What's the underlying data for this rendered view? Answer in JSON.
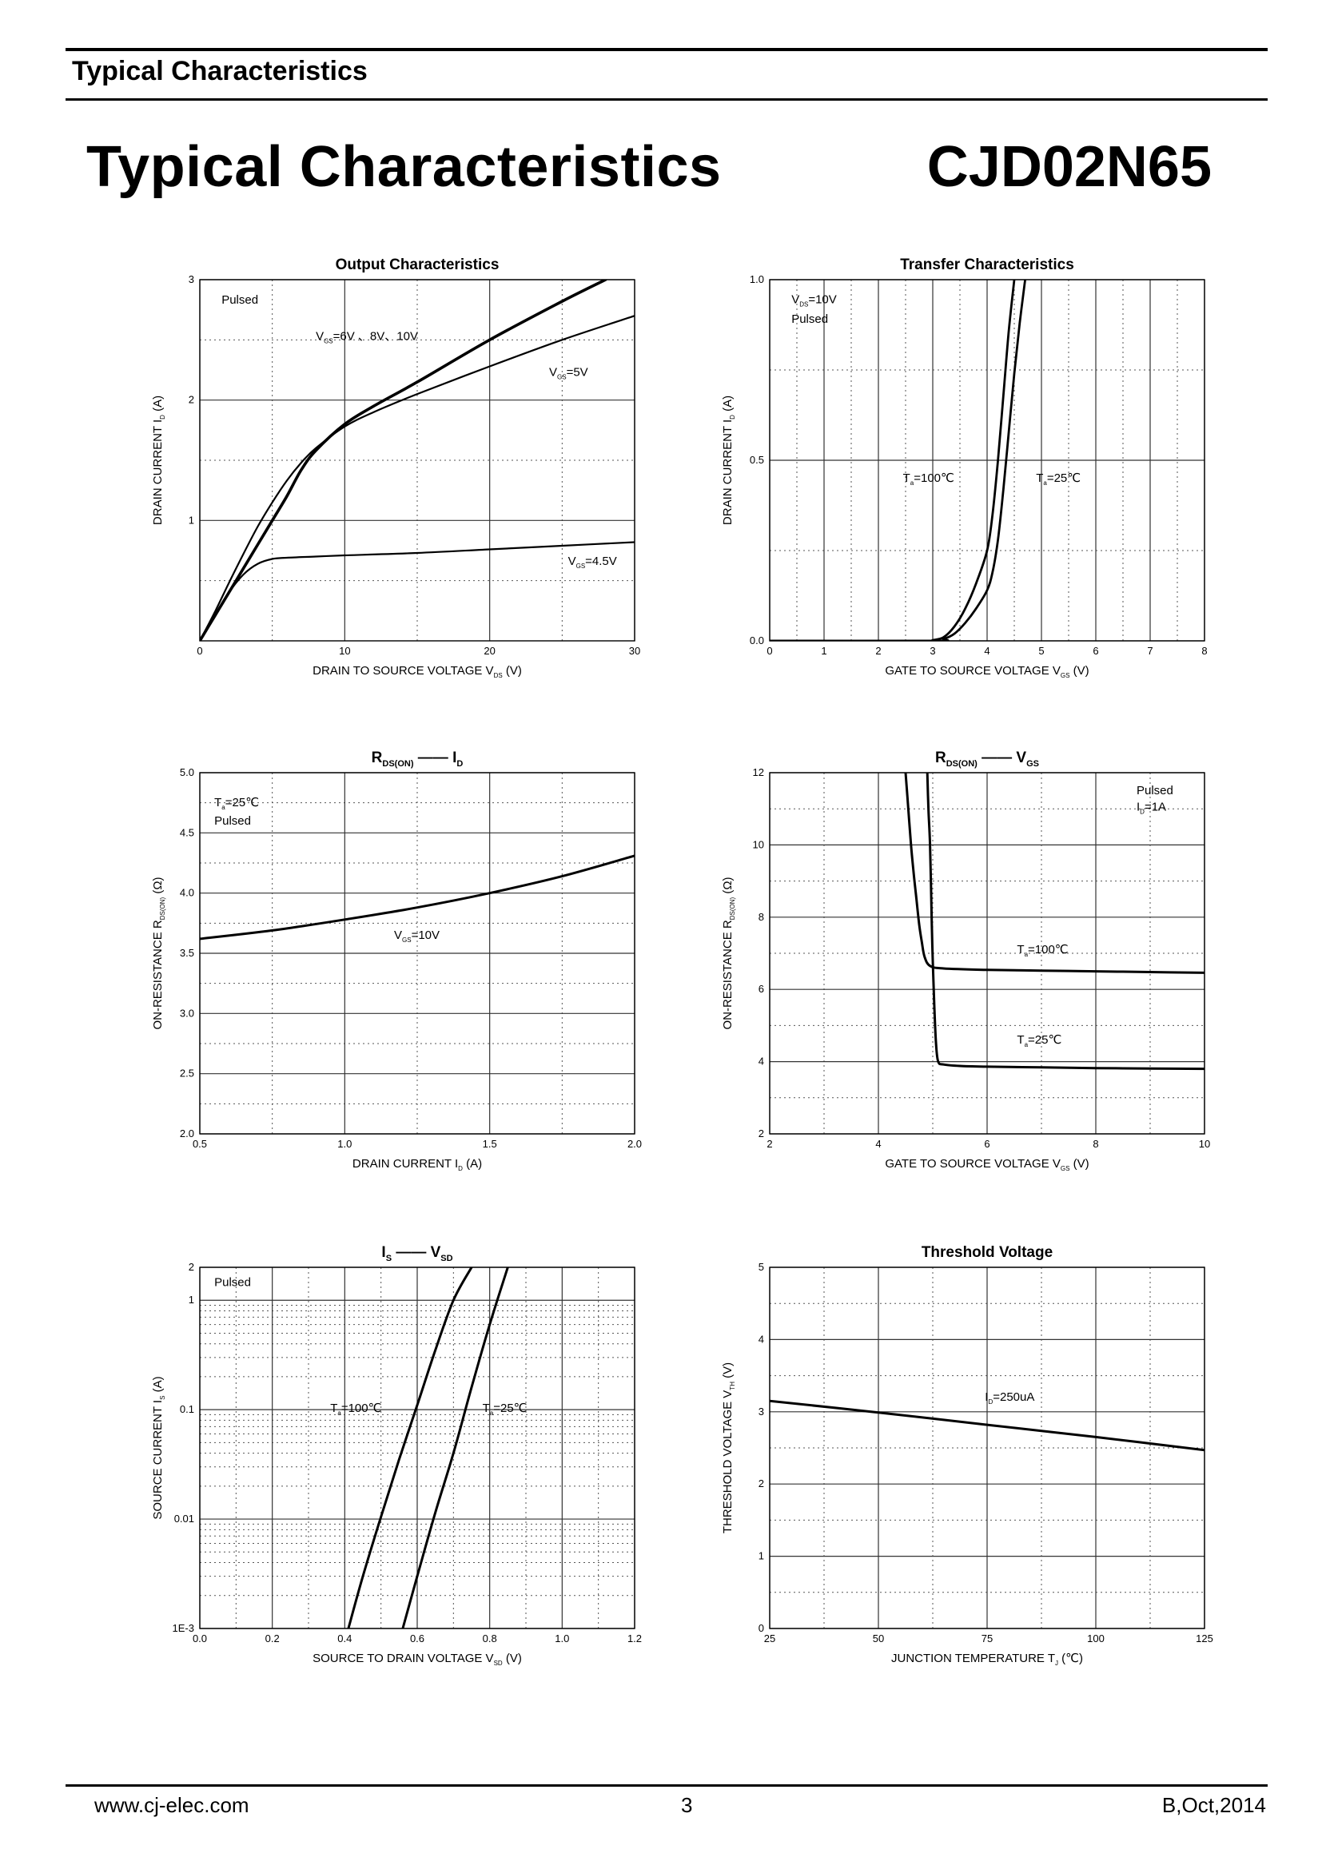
{
  "header": {
    "label": "Typical Characteristics"
  },
  "document": {
    "title": "Typical Characteristics",
    "part_number": "CJD02N65"
  },
  "footer": {
    "url": "www.cj-elec.com",
    "page": "3",
    "revision": "B,Oct,2014"
  },
  "chart_data": [
    {
      "id": "output",
      "type": "line",
      "title": {
        "main": "Output Characteristics"
      },
      "xlabel": {
        "text": "DRAIN TO SOURCE VOLTAGE",
        "sym": "V",
        "sub": "DS",
        "unit": "(V)"
      },
      "ylabel": {
        "text": "DRAIN CURRENT",
        "sym": "I",
        "sub": "D",
        "unit": "(A)"
      },
      "xlim": [
        0,
        30
      ],
      "ylim": [
        0,
        3
      ],
      "yscale": "linear",
      "xticks": [
        0,
        10,
        20,
        30
      ],
      "xtick_labels": [
        "0",
        "10",
        "20",
        "30"
      ],
      "yticks": [
        1,
        2,
        3
      ],
      "ytick_labels": [
        "1",
        "2",
        "3"
      ],
      "minor_x": [
        5,
        15,
        25
      ],
      "minor_y": [
        0.5,
        1.5,
        2.5
      ],
      "series": [
        {
          "name": "VGS=6V, 8V, 10V",
          "width": 3.6,
          "x": [
            0,
            1,
            2,
            3,
            4,
            5,
            6,
            7,
            8,
            10,
            12,
            15,
            20,
            25,
            28
          ],
          "y": [
            0,
            0.2,
            0.4,
            0.6,
            0.8,
            1.0,
            1.2,
            1.42,
            1.58,
            1.8,
            1.95,
            2.15,
            2.5,
            2.82,
            3.0
          ]
        },
        {
          "name": "VGS=5V",
          "width": 2.2,
          "x": [
            0,
            1,
            2,
            3,
            4,
            5,
            6,
            7,
            8,
            10,
            12,
            15,
            20,
            25,
            30
          ],
          "y": [
            0,
            0.23,
            0.48,
            0.72,
            0.95,
            1.15,
            1.33,
            1.48,
            1.6,
            1.78,
            1.9,
            2.05,
            2.28,
            2.5,
            2.7
          ]
        },
        {
          "name": "VGS=4.5V",
          "width": 2.2,
          "x": [
            0,
            1,
            2,
            3,
            4,
            5,
            6,
            8,
            10,
            15,
            20,
            25,
            30
          ],
          "y": [
            0,
            0.2,
            0.4,
            0.55,
            0.64,
            0.68,
            0.69,
            0.7,
            0.71,
            0.73,
            0.76,
            0.79,
            0.82
          ]
        }
      ],
      "texts": [
        {
          "parts": [
            {
              "t": "Pulsed"
            }
          ],
          "x": 1.5,
          "y": 2.8
        },
        {
          "parts": [
            {
              "t": "V"
            },
            {
              "t": "GS",
              "sub": true
            },
            {
              "t": "=6V 、8V、10V"
            }
          ],
          "x": 8,
          "y": 2.5
        },
        {
          "parts": [
            {
              "t": "V"
            },
            {
              "t": "GS",
              "sub": true
            },
            {
              "t": "=5V"
            }
          ],
          "x": 24.1,
          "y": 2.2
        },
        {
          "parts": [
            {
              "t": "V"
            },
            {
              "t": "GS",
              "sub": true
            },
            {
              "t": "=4.5V"
            }
          ],
          "x": 25.4,
          "y": 0.63
        }
      ]
    },
    {
      "id": "transfer",
      "type": "line",
      "title": {
        "main": "Transfer Characteristics"
      },
      "xlabel": {
        "text": "GATE TO SOURCE VOLTAGE",
        "sym": "V",
        "sub": "GS",
        "unit": "(V)"
      },
      "ylabel": {
        "text": "DRAIN CURRENT",
        "sym": "I",
        "sub": "D",
        "unit": "(A)"
      },
      "xlim": [
        0,
        8
      ],
      "ylim": [
        0,
        1
      ],
      "yscale": "linear",
      "xticks": [
        0,
        1,
        2,
        3,
        4,
        5,
        6,
        7,
        8
      ],
      "xtick_labels": [
        "0",
        "1",
        "2",
        "3",
        "4",
        "5",
        "6",
        "7",
        "8"
      ],
      "yticks": [
        0,
        0.5,
        1.0
      ],
      "ytick_labels": [
        "0.0",
        "0.5",
        "1.0"
      ],
      "minor_x": [
        0.5,
        1.5,
        2.5,
        3.5,
        4.5,
        5.5,
        6.5,
        7.5
      ],
      "minor_y": [
        0.25,
        0.75
      ],
      "series": [
        {
          "name": "Ta=100°C",
          "width": 2.8,
          "x": [
            0,
            2.8,
            3.0,
            3.2,
            3.4,
            3.6,
            3.8,
            4.0,
            4.1,
            4.2,
            4.3,
            4.4,
            4.5
          ],
          "y": [
            0,
            0,
            0.002,
            0.01,
            0.04,
            0.09,
            0.16,
            0.25,
            0.35,
            0.5,
            0.68,
            0.86,
            1.0
          ]
        },
        {
          "name": "Ta=25°C",
          "width": 2.8,
          "x": [
            0,
            3.0,
            3.2,
            3.4,
            3.6,
            3.8,
            4.0,
            4.1,
            4.2,
            4.3,
            4.4,
            4.5,
            4.6,
            4.7
          ],
          "y": [
            0,
            0,
            0.005,
            0.02,
            0.05,
            0.09,
            0.14,
            0.19,
            0.28,
            0.42,
            0.58,
            0.74,
            0.88,
            1.0
          ]
        }
      ],
      "texts": [
        {
          "parts": [
            {
              "t": "V"
            },
            {
              "t": "DS",
              "sub": true
            },
            {
              "t": "=10V"
            }
          ],
          "x": 0.4,
          "y": 0.935
        },
        {
          "parts": [
            {
              "t": "Pulsed"
            }
          ],
          "x": 0.4,
          "y": 0.88
        },
        {
          "parts": [
            {
              "t": "T"
            },
            {
              "t": "a",
              "sub": true
            },
            {
              "t": "=100℃"
            }
          ],
          "x": 2.45,
          "y": 0.44
        },
        {
          "parts": [
            {
              "t": "T"
            },
            {
              "t": "a",
              "sub": true
            },
            {
              "t": "=25℃"
            }
          ],
          "x": 4.9,
          "y": 0.44
        }
      ]
    },
    {
      "id": "rds-id",
      "type": "line",
      "title": {
        "main": "R",
        "main_sub": "DS(ON)",
        "dash": "——",
        "second": "I",
        "second_sub": "D"
      },
      "xlabel": {
        "text": "DRAIN CURRENT",
        "sym": "I",
        "sub": "D",
        "unit": "(A)"
      },
      "ylabel": {
        "text": "ON-RESISTANCE",
        "sym": "R",
        "sub": "DS(ON)",
        "unit": "(Ω)"
      },
      "xlim": [
        0.5,
        2.0
      ],
      "ylim": [
        2.0,
        5.0
      ],
      "yscale": "linear",
      "xticks": [
        0.5,
        1.0,
        1.5,
        2.0
      ],
      "xtick_labels": [
        "0.5",
        "1.0",
        "1.5",
        "2.0"
      ],
      "yticks": [
        2.0,
        2.5,
        3.0,
        3.5,
        4.0,
        4.5,
        5.0
      ],
      "ytick_labels": [
        "2.0",
        "2.5",
        "3.0",
        "3.5",
        "4.0",
        "4.5",
        "5.0"
      ],
      "minor_x": [
        0.75,
        1.25,
        1.75
      ],
      "minor_y": [
        2.25,
        2.75,
        3.25,
        3.75,
        4.25,
        4.75
      ],
      "series": [
        {
          "name": "VGS=10V",
          "width": 3.0,
          "x": [
            0.5,
            0.75,
            1.0,
            1.25,
            1.5,
            1.75,
            2.0
          ],
          "y": [
            3.62,
            3.69,
            3.78,
            3.88,
            4.0,
            4.14,
            4.31
          ]
        }
      ],
      "texts": [
        {
          "parts": [
            {
              "t": "T"
            },
            {
              "t": "a",
              "sub": true
            },
            {
              "t": "=25℃"
            }
          ],
          "x": 0.55,
          "y": 4.72
        },
        {
          "parts": [
            {
              "t": "Pulsed"
            }
          ],
          "x": 0.55,
          "y": 4.57
        },
        {
          "parts": [
            {
              "t": "V"
            },
            {
              "t": "GS",
              "sub": true
            },
            {
              "t": "=10V"
            }
          ],
          "x": 1.17,
          "y": 3.62
        }
      ]
    },
    {
      "id": "rds-vgs",
      "type": "line",
      "title": {
        "main": "R",
        "main_sub": "DS(ON)",
        "dash": "——",
        "second": "V",
        "second_sub": "GS"
      },
      "xlabel": {
        "text": "GATE TO SOURCE VOLTAGE",
        "sym": "V",
        "sub": "GS",
        "unit": "(V)"
      },
      "ylabel": {
        "text": "ON-RESISTANCE",
        "sym": "R",
        "sub": "DS(ON)",
        "unit": "(Ω)"
      },
      "xlim": [
        2,
        10
      ],
      "ylim": [
        2,
        12
      ],
      "yscale": "linear",
      "xticks": [
        2,
        4,
        6,
        8,
        10
      ],
      "xtick_labels": [
        "2",
        "4",
        "6",
        "8",
        "10"
      ],
      "yticks": [
        2,
        4,
        6,
        8,
        10,
        12
      ],
      "ytick_labels": [
        "2",
        "4",
        "6",
        "8",
        "10",
        "12"
      ],
      "minor_x": [
        3,
        5,
        7,
        9
      ],
      "minor_y": [
        3,
        5,
        7,
        9,
        11
      ],
      "series": [
        {
          "name": "Ta=100°C",
          "width": 3.0,
          "x": [
            4.5,
            4.55,
            4.6,
            4.65,
            4.7,
            4.75,
            4.8,
            4.85,
            4.95,
            5.2,
            6,
            7,
            8,
            9,
            10
          ],
          "y": [
            12,
            11,
            10,
            9.2,
            8.5,
            7.8,
            7.3,
            6.9,
            6.65,
            6.58,
            6.54,
            6.52,
            6.5,
            6.48,
            6.46
          ]
        },
        {
          "name": "Ta=25°C",
          "width": 3.0,
          "x": [
            4.9,
            4.92,
            4.95,
            4.98,
            5.0,
            5.03,
            5.06,
            5.1,
            5.2,
            5.5,
            6,
            7,
            8,
            9,
            10
          ],
          "y": [
            12,
            11,
            10,
            8,
            6.8,
            5.5,
            4.5,
            4.0,
            3.92,
            3.88,
            3.86,
            3.84,
            3.82,
            3.81,
            3.8
          ]
        }
      ],
      "texts": [
        {
          "parts": [
            {
              "t": "Pulsed"
            }
          ],
          "x": 8.75,
          "y": 11.4
        },
        {
          "parts": [
            {
              "t": "I"
            },
            {
              "t": "D",
              "sub": true
            },
            {
              "t": "=1A"
            }
          ],
          "x": 8.75,
          "y": 10.95
        },
        {
          "parts": [
            {
              "t": "T"
            },
            {
              "t": "a",
              "sub": true
            },
            {
              "t": "=100℃"
            }
          ],
          "x": 6.55,
          "y": 7.0
        },
        {
          "parts": [
            {
              "t": "T"
            },
            {
              "t": "a",
              "sub": true
            },
            {
              "t": "=25℃"
            }
          ],
          "x": 6.55,
          "y": 4.5
        }
      ]
    },
    {
      "id": "is-vsd",
      "type": "line",
      "title": {
        "main": "I",
        "main_sub": "S",
        "dash": "——",
        "second": "V",
        "second_sub": "SD"
      },
      "xlabel": {
        "text": "SOURCE TO DRAIN VOLTAGE",
        "sym": "V",
        "sub": "SD",
        "unit": "(V)"
      },
      "ylabel": {
        "text": "SOURCE CURRENT",
        "sym": "I",
        "sub": "S",
        "unit": "(A)"
      },
      "xlim": [
        0,
        1.2
      ],
      "ylim": [
        0.001,
        2
      ],
      "yscale": "log",
      "xticks": [
        0,
        0.2,
        0.4,
        0.6,
        0.8,
        1.0,
        1.2
      ],
      "xtick_labels": [
        "0.0",
        "0.2",
        "0.4",
        "0.6",
        "0.8",
        "1.0",
        "1.2"
      ],
      "yticks": [
        0.001,
        0.01,
        0.1,
        1,
        2
      ],
      "ytick_labels": [
        "1E-3",
        "0.01",
        "0.1",
        "1",
        "2"
      ],
      "minor_x": [
        0.1,
        0.3,
        0.5,
        0.7,
        0.9,
        1.1
      ],
      "minor_y": [],
      "series": [
        {
          "name": "Ta=100°C",
          "width": 3.0,
          "x": [
            0.41,
            0.45,
            0.5,
            0.55,
            0.6,
            0.65,
            0.7,
            0.75
          ],
          "y": [
            0.001,
            0.003,
            0.0105,
            0.035,
            0.11,
            0.35,
            1.0,
            2.0
          ]
        },
        {
          "name": "Ta=25°C",
          "width": 3.0,
          "x": [
            0.56,
            0.6,
            0.65,
            0.7,
            0.75,
            0.8,
            0.85
          ],
          "y": [
            0.001,
            0.003,
            0.0115,
            0.04,
            0.16,
            0.6,
            2.0
          ]
        }
      ],
      "texts": [
        {
          "parts": [
            {
              "t": "Pulsed"
            }
          ],
          "x": 0.04,
          "y": 1.35
        },
        {
          "parts": [
            {
              "t": "T"
            },
            {
              "t": "a",
              "sub": true
            },
            {
              "t": "=100℃"
            }
          ],
          "x": 0.36,
          "y": 0.095
        },
        {
          "parts": [
            {
              "t": "T"
            },
            {
              "t": "a",
              "sub": true
            },
            {
              "t": "=25℃"
            }
          ],
          "x": 0.78,
          "y": 0.095
        }
      ]
    },
    {
      "id": "threshold",
      "type": "line",
      "title": {
        "main": "Threshold Voltage"
      },
      "xlabel": {
        "text": "JUNCTION TEMPERATURE",
        "sym": "T",
        "sub": "J",
        "unit": "(℃)"
      },
      "ylabel": {
        "text": "THRESHOLD VOLTAGE",
        "sym": "V",
        "sub": "TH",
        "unit": "(V)"
      },
      "xlim": [
        25,
        125
      ],
      "ylim": [
        0,
        5
      ],
      "yscale": "linear",
      "xticks": [
        25,
        50,
        75,
        100,
        125
      ],
      "xtick_labels": [
        "25",
        "50",
        "75",
        "100",
        "125"
      ],
      "yticks": [
        0,
        1,
        2,
        3,
        4,
        5
      ],
      "ytick_labels": [
        "0",
        "1",
        "2",
        "3",
        "4",
        "5"
      ],
      "minor_x": [
        37.5,
        62.5,
        87.5,
        112.5
      ],
      "minor_y": [
        0.5,
        1.5,
        2.5,
        3.5,
        4.5
      ],
      "series": [
        {
          "name": "ID=250uA",
          "width": 3.0,
          "x": [
            25,
            50,
            75,
            100,
            125
          ],
          "y": [
            3.15,
            2.99,
            2.82,
            2.65,
            2.47
          ]
        }
      ],
      "texts": [
        {
          "parts": [
            {
              "t": "I"
            },
            {
              "t": "D",
              "sub": true
            },
            {
              "t": "=250uA"
            }
          ],
          "x": 74.5,
          "y": 3.15
        }
      ]
    }
  ]
}
